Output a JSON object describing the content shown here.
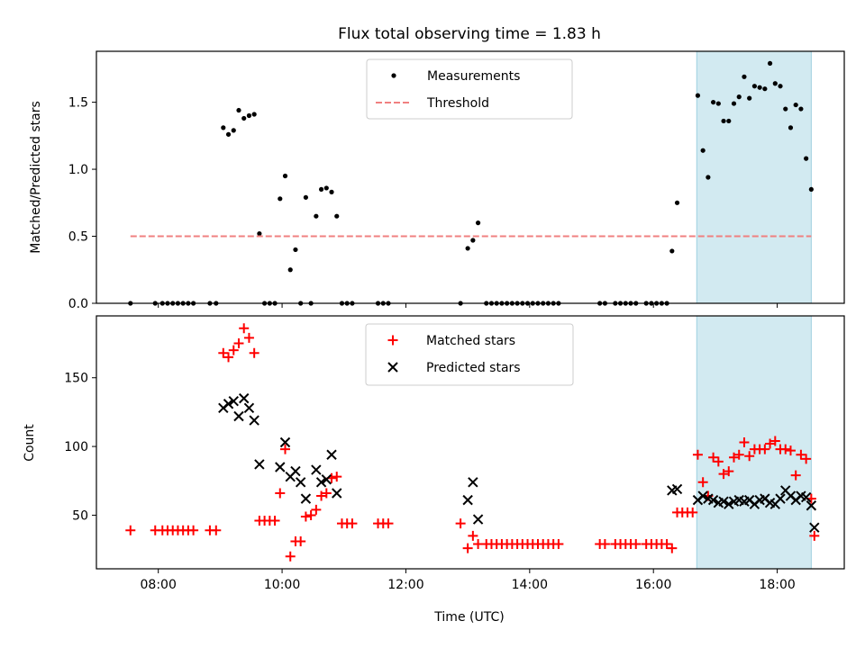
{
  "chart_data": [
    {
      "type": "scatter",
      "title": "Flux total observing time = 1.83 h",
      "xlabel": "",
      "ylabel": "Matched/Predicted stars",
      "xlim": [
        "07:00",
        "19:05"
      ],
      "ylim": [
        0,
        1.88
      ],
      "yticks": [
        "0.0",
        "0.5",
        "1.0",
        "1.5"
      ],
      "xticks": [
        "08:00",
        "10:00",
        "12:00",
        "14:00",
        "16:00",
        "18:00"
      ],
      "x_tick_labels_visible": false,
      "legend": {
        "placement": "top-center",
        "entries": [
          "Measurements",
          "Threshold"
        ]
      },
      "highlight_span": {
        "x_start": "16:42",
        "x_end": "18:33",
        "color": "#add8e6"
      },
      "series": [
        {
          "name": "Measurements",
          "marker": "dot",
          "color": "#000000",
          "points": [
            [
              "07:33",
              0.0
            ],
            [
              "07:57",
              0.0
            ],
            [
              "08:04",
              0.0
            ],
            [
              "08:09",
              0.0
            ],
            [
              "08:14",
              0.0
            ],
            [
              "08:19",
              0.0
            ],
            [
              "08:24",
              0.0
            ],
            [
              "08:29",
              0.0
            ],
            [
              "08:34",
              0.0
            ],
            [
              "08:50",
              0.0
            ],
            [
              "08:56",
              0.0
            ],
            [
              "09:03",
              1.31
            ],
            [
              "09:08",
              1.26
            ],
            [
              "09:13",
              1.29
            ],
            [
              "09:18",
              1.44
            ],
            [
              "09:23",
              1.38
            ],
            [
              "09:28",
              1.4
            ],
            [
              "09:33",
              1.41
            ],
            [
              "09:38",
              0.52
            ],
            [
              "09:43",
              0.0
            ],
            [
              "09:48",
              0.0
            ],
            [
              "09:53",
              0.0
            ],
            [
              "09:58",
              0.78
            ],
            [
              "10:03",
              0.95
            ],
            [
              "10:08",
              0.25
            ],
            [
              "10:13",
              0.4
            ],
            [
              "10:18",
              0.0
            ],
            [
              "10:23",
              0.79
            ],
            [
              "10:28",
              0.0
            ],
            [
              "10:33",
              0.65
            ],
            [
              "10:38",
              0.85
            ],
            [
              "10:43",
              0.86
            ],
            [
              "10:48",
              0.83
            ],
            [
              "10:53",
              0.65
            ],
            [
              "10:58",
              0.0
            ],
            [
              "11:03",
              0.0
            ],
            [
              "11:08",
              0.0
            ],
            [
              "11:33",
              0.0
            ],
            [
              "11:38",
              0.0
            ],
            [
              "11:43",
              0.0
            ],
            [
              "12:53",
              0.0
            ],
            [
              "13:00",
              0.41
            ],
            [
              "13:05",
              0.47
            ],
            [
              "13:10",
              0.6
            ],
            [
              "13:18",
              0.0
            ],
            [
              "13:23",
              0.0
            ],
            [
              "13:28",
              0.0
            ],
            [
              "13:33",
              0.0
            ],
            [
              "13:38",
              0.0
            ],
            [
              "13:43",
              0.0
            ],
            [
              "13:48",
              0.0
            ],
            [
              "13:53",
              0.0
            ],
            [
              "13:58",
              0.0
            ],
            [
              "14:03",
              0.0
            ],
            [
              "14:08",
              0.0
            ],
            [
              "14:13",
              0.0
            ],
            [
              "14:18",
              0.0
            ],
            [
              "14:23",
              0.0
            ],
            [
              "14:28",
              0.0
            ],
            [
              "15:08",
              0.0
            ],
            [
              "15:13",
              0.0
            ],
            [
              "15:23",
              0.0
            ],
            [
              "15:28",
              0.0
            ],
            [
              "15:33",
              0.0
            ],
            [
              "15:38",
              0.0
            ],
            [
              "15:43",
              0.0
            ],
            [
              "15:53",
              0.0
            ],
            [
              "15:58",
              0.0
            ],
            [
              "16:03",
              0.0
            ],
            [
              "16:08",
              0.0
            ],
            [
              "16:13",
              0.0
            ],
            [
              "16:18",
              0.39
            ],
            [
              "16:23",
              0.75
            ],
            [
              "16:43",
              1.55
            ],
            [
              "16:48",
              1.14
            ],
            [
              "16:53",
              0.94
            ],
            [
              "16:58",
              1.5
            ],
            [
              "17:03",
              1.49
            ],
            [
              "17:08",
              1.36
            ],
            [
              "17:13",
              1.36
            ],
            [
              "17:18",
              1.49
            ],
            [
              "17:23",
              1.54
            ],
            [
              "17:28",
              1.69
            ],
            [
              "17:33",
              1.53
            ],
            [
              "17:38",
              1.62
            ],
            [
              "17:43",
              1.61
            ],
            [
              "17:48",
              1.6
            ],
            [
              "17:53",
              1.79
            ],
            [
              "17:58",
              1.64
            ],
            [
              "18:03",
              1.62
            ],
            [
              "18:08",
              1.45
            ],
            [
              "18:13",
              1.31
            ],
            [
              "18:18",
              1.48
            ],
            [
              "18:23",
              1.45
            ],
            [
              "18:28",
              1.08
            ],
            [
              "18:33",
              0.85
            ]
          ]
        },
        {
          "name": "Threshold",
          "type": "line",
          "style": "dashed",
          "color": "#f08080",
          "x": [
            "07:33",
            "18:33"
          ],
          "y": [
            0.5,
            0.5
          ]
        }
      ]
    },
    {
      "type": "scatter",
      "title": "",
      "xlabel": "Time (UTC)",
      "ylabel": "Count",
      "xlim": [
        "07:00",
        "19:05"
      ],
      "ylim": [
        11,
        195
      ],
      "yticks": [
        "50",
        "100",
        "150"
      ],
      "xticks": [
        "08:00",
        "10:00",
        "12:00",
        "14:00",
        "16:00",
        "18:00"
      ],
      "legend": {
        "placement": "top-center",
        "entries": [
          "Matched stars",
          "Predicted stars"
        ]
      },
      "highlight_span": {
        "x_start": "16:42",
        "x_end": "18:33",
        "color": "#add8e6"
      },
      "series": [
        {
          "name": "Matched stars",
          "marker": "plus",
          "color": "#ff0000",
          "points": [
            [
              "07:33",
              39
            ],
            [
              "07:57",
              39
            ],
            [
              "08:04",
              39
            ],
            [
              "08:09",
              39
            ],
            [
              "08:14",
              39
            ],
            [
              "08:19",
              39
            ],
            [
              "08:24",
              39
            ],
            [
              "08:29",
              39
            ],
            [
              "08:34",
              39
            ],
            [
              "08:50",
              39
            ],
            [
              "08:56",
              39
            ],
            [
              "09:03",
              168
            ],
            [
              "09:08",
              165
            ],
            [
              "09:13",
              170
            ],
            [
              "09:18",
              175
            ],
            [
              "09:23",
              186
            ],
            [
              "09:28",
              179
            ],
            [
              "09:33",
              168
            ],
            [
              "09:38",
              46
            ],
            [
              "09:43",
              46
            ],
            [
              "09:48",
              46
            ],
            [
              "09:53",
              46
            ],
            [
              "09:58",
              66
            ],
            [
              "10:03",
              98
            ],
            [
              "10:08",
              20
            ],
            [
              "10:13",
              31
            ],
            [
              "10:18",
              31
            ],
            [
              "10:23",
              49
            ],
            [
              "10:28",
              50
            ],
            [
              "10:33",
              54
            ],
            [
              "10:38",
              64
            ],
            [
              "10:43",
              66
            ],
            [
              "10:48",
              77
            ],
            [
              "10:53",
              78
            ],
            [
              "10:58",
              44
            ],
            [
              "11:03",
              44
            ],
            [
              "11:08",
              44
            ],
            [
              "11:33",
              44
            ],
            [
              "11:38",
              44
            ],
            [
              "11:43",
              44
            ],
            [
              "12:53",
              44
            ],
            [
              "13:00",
              26
            ],
            [
              "13:05",
              35
            ],
            [
              "13:10",
              29
            ],
            [
              "13:18",
              29
            ],
            [
              "13:23",
              29
            ],
            [
              "13:28",
              29
            ],
            [
              "13:33",
              29
            ],
            [
              "13:38",
              29
            ],
            [
              "13:43",
              29
            ],
            [
              "13:48",
              29
            ],
            [
              "13:53",
              29
            ],
            [
              "13:58",
              29
            ],
            [
              "14:03",
              29
            ],
            [
              "14:08",
              29
            ],
            [
              "14:13",
              29
            ],
            [
              "14:18",
              29
            ],
            [
              "14:23",
              29
            ],
            [
              "14:28",
              29
            ],
            [
              "15:08",
              29
            ],
            [
              "15:13",
              29
            ],
            [
              "15:23",
              29
            ],
            [
              "15:28",
              29
            ],
            [
              "15:33",
              29
            ],
            [
              "15:38",
              29
            ],
            [
              "15:43",
              29
            ],
            [
              "15:53",
              29
            ],
            [
              "15:58",
              29
            ],
            [
              "16:03",
              29
            ],
            [
              "16:08",
              29
            ],
            [
              "16:13",
              29
            ],
            [
              "16:18",
              26
            ],
            [
              "16:23",
              52
            ],
            [
              "16:28",
              52
            ],
            [
              "16:33",
              52
            ],
            [
              "16:38",
              52
            ],
            [
              "16:43",
              94
            ],
            [
              "16:48",
              74
            ],
            [
              "16:53",
              64
            ],
            [
              "16:58",
              92
            ],
            [
              "17:03",
              89
            ],
            [
              "17:08",
              80
            ],
            [
              "17:13",
              82
            ],
            [
              "17:18",
              92
            ],
            [
              "17:23",
              94
            ],
            [
              "17:28",
              103
            ],
            [
              "17:33",
              93
            ],
            [
              "17:38",
              98
            ],
            [
              "17:43",
              98
            ],
            [
              "17:48",
              98
            ],
            [
              "17:53",
              102
            ],
            [
              "17:58",
              104
            ],
            [
              "18:03",
              98
            ],
            [
              "18:08",
              98
            ],
            [
              "18:13",
              97
            ],
            [
              "18:18",
              79
            ],
            [
              "18:23",
              94
            ],
            [
              "18:28",
              91
            ],
            [
              "18:33",
              62
            ],
            [
              "18:36",
              35
            ]
          ]
        },
        {
          "name": "Predicted stars",
          "marker": "x",
          "color": "#000000",
          "points": [
            [
              "09:03",
              128
            ],
            [
              "09:08",
              131
            ],
            [
              "09:13",
              133
            ],
            [
              "09:18",
              122
            ],
            [
              "09:23",
              135
            ],
            [
              "09:28",
              128
            ],
            [
              "09:33",
              119
            ],
            [
              "09:38",
              87
            ],
            [
              "09:58",
              85
            ],
            [
              "10:03",
              103
            ],
            [
              "10:08",
              78
            ],
            [
              "10:13",
              82
            ],
            [
              "10:18",
              74
            ],
            [
              "10:23",
              62
            ],
            [
              "10:33",
              83
            ],
            [
              "10:38",
              74
            ],
            [
              "10:43",
              76
            ],
            [
              "10:48",
              94
            ],
            [
              "10:53",
              66
            ],
            [
              "13:00",
              61
            ],
            [
              "13:05",
              74
            ],
            [
              "13:10",
              47
            ],
            [
              "16:18",
              68
            ],
            [
              "16:23",
              69
            ],
            [
              "16:43",
              61
            ],
            [
              "16:48",
              64
            ],
            [
              "16:53",
              62
            ],
            [
              "16:58",
              61
            ],
            [
              "17:03",
              59
            ],
            [
              "17:08",
              60
            ],
            [
              "17:13",
              58
            ],
            [
              "17:18",
              60
            ],
            [
              "17:23",
              61
            ],
            [
              "17:28",
              60
            ],
            [
              "17:33",
              61
            ],
            [
              "17:38",
              58
            ],
            [
              "17:43",
              61
            ],
            [
              "17:48",
              62
            ],
            [
              "17:53",
              59
            ],
            [
              "17:58",
              58
            ],
            [
              "18:03",
              62
            ],
            [
              "18:08",
              68
            ],
            [
              "18:13",
              64
            ],
            [
              "18:18",
              61
            ],
            [
              "18:23",
              64
            ],
            [
              "18:28",
              63
            ],
            [
              "18:33",
              57
            ],
            [
              "18:36",
              41
            ]
          ]
        }
      ]
    }
  ]
}
